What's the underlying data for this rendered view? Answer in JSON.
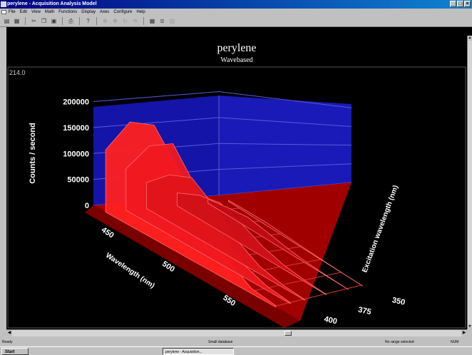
{
  "window": {
    "title": "perylene - Acquisition Analysis Model"
  },
  "menubar": {
    "items": [
      "File",
      "Edit",
      "View",
      "Math",
      "Functions",
      "Display",
      "Axes",
      "Configure",
      "Help"
    ]
  },
  "toolbar": {
    "icons": [
      "open-icon",
      "save-icon",
      "print-icon",
      "cut-icon",
      "copy-icon",
      "paste-icon",
      "printer-icon",
      "help-icon",
      "zoom-icon",
      "grid-icon",
      "list-icon",
      "chart-icon"
    ]
  },
  "plot": {
    "title": "perylene",
    "subtitle": "Wavebased",
    "corner_value": "214.0"
  },
  "chart_data": {
    "type": "surface3d",
    "zlabel": "Counts / second",
    "xlabel": "Wavelength (nm)",
    "ylabel": "Excitation wavelength (nm)",
    "z_ticks": [
      "0",
      "50000",
      "100000",
      "150000",
      "200000"
    ],
    "x_ticks": [
      "450",
      "500",
      "550"
    ],
    "y_ticks": [
      "350",
      "375",
      "400"
    ],
    "zlim": [
      0,
      220000
    ],
    "xlim": [
      430,
      600
    ],
    "ylim": [
      350,
      410
    ],
    "colors": {
      "back_wall": "#1414a8",
      "surface": "#e0101a",
      "floor": "#a00000",
      "text": "#ffffff"
    },
    "series": [
      {
        "excitation": 410,
        "values": [
          120000,
          200000,
          220000,
          160000,
          90000,
          40000,
          10000,
          3000
        ]
      },
      {
        "excitation": 400,
        "values": [
          80000,
          150000,
          180000,
          120000,
          60000,
          25000,
          8000,
          2000
        ]
      },
      {
        "excitation": 390,
        "values": [
          50000,
          90000,
          110000,
          80000,
          40000,
          15000,
          5000,
          1000
        ]
      },
      {
        "excitation": 375,
        "values": [
          25000,
          45000,
          55000,
          40000,
          20000,
          8000,
          3000,
          500
        ]
      },
      {
        "excitation": 360,
        "values": [
          8000,
          15000,
          20000,
          14000,
          7000,
          3000,
          1000,
          200
        ]
      },
      {
        "excitation": 350,
        "values": [
          2000,
          4000,
          5000,
          3500,
          2000,
          800,
          300,
          100
        ]
      }
    ],
    "emission_x": [
      440,
      460,
      480,
      500,
      520,
      540,
      560,
      580
    ]
  },
  "statusbar": {
    "left": "Ready",
    "mid": "Small database",
    "right": "No range selected",
    "num": "NUM"
  },
  "taskbar": {
    "start_label": "Start",
    "task_label": "perylene - Acquisition..."
  }
}
